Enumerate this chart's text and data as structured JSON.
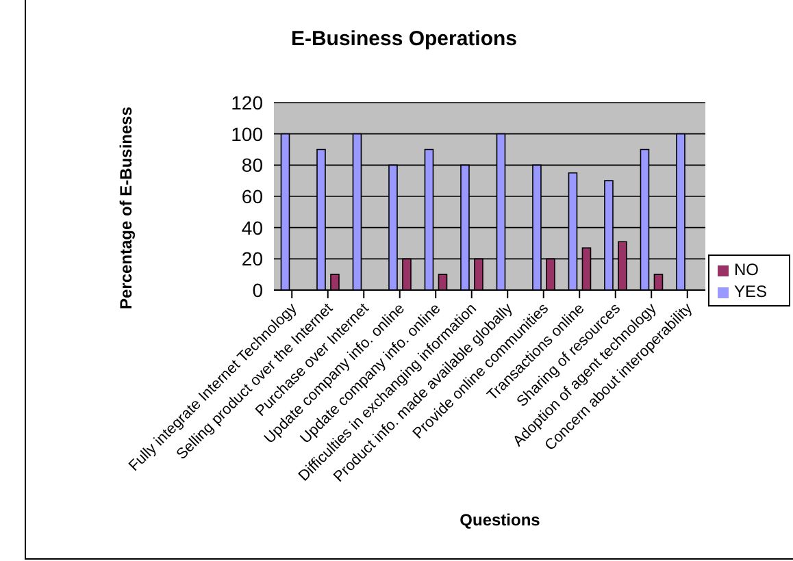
{
  "chart_data": {
    "type": "bar",
    "title": "E-Business Operations",
    "xlabel": "Questions",
    "ylabel": "Percentage of E-Business",
    "categories": [
      "Fully integrate Internet Technology",
      "Selling product over the Internet",
      "Purchase over Internet",
      "Update company info. online",
      "Update company info. online",
      "Difficulties in exchanging information",
      "Product info. made available globally",
      "Provide online communities",
      "Transactions online",
      "Sharing of resources",
      "Adoption of agent technology",
      "Concern about interoperability"
    ],
    "series": [
      {
        "name": "YES",
        "color": "#9999ff",
        "values": [
          100,
          90,
          100,
          80,
          90,
          80,
          100,
          80,
          75,
          70,
          90,
          100
        ]
      },
      {
        "name": "NO",
        "color": "#993366",
        "values": [
          0,
          10,
          0,
          20,
          10,
          20,
          0,
          20,
          27,
          31,
          10,
          0
        ]
      }
    ],
    "ylim": [
      0,
      120
    ],
    "yticks": [
      0,
      20,
      40,
      60,
      80,
      100,
      120
    ],
    "grid": "y",
    "legend": "right"
  }
}
